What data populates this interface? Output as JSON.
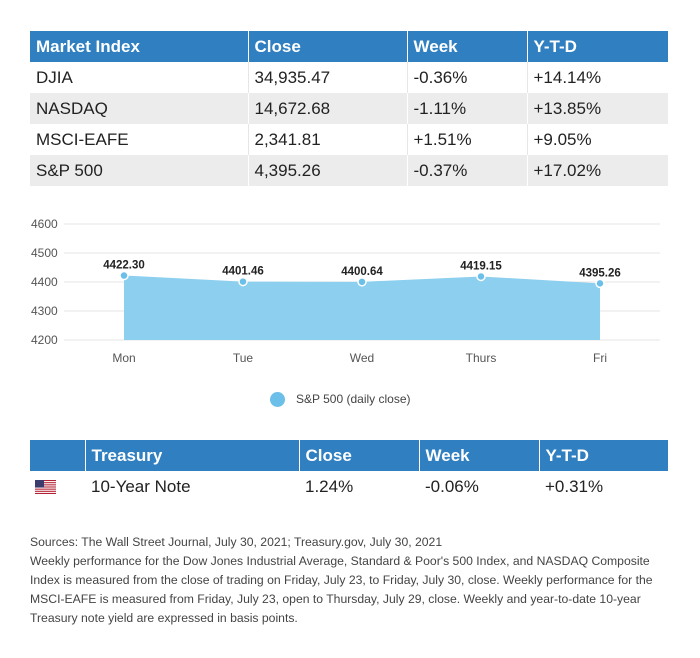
{
  "market_table": {
    "headers": [
      "Market Index",
      "Close",
      "Week",
      "Y-T-D"
    ],
    "rows": [
      [
        "DJIA",
        "34,935.47",
        "-0.36%",
        "+14.14%"
      ],
      [
        "NASDAQ",
        "14,672.68",
        "-1.11%",
        "+13.85%"
      ],
      [
        "MSCI-EAFE",
        "2,341.81",
        "+1.51%",
        "+9.05%"
      ],
      [
        "S&P 500",
        "4,395.26",
        "-0.37%",
        "+17.02%"
      ]
    ]
  },
  "chart_data": {
    "type": "area",
    "categories": [
      "Mon",
      "Tue",
      "Wed",
      "Thurs",
      "Fri"
    ],
    "series": [
      {
        "name": "S&P 500 (daily close)",
        "values": [
          4422.3,
          4401.46,
          4400.64,
          4419.15,
          4395.26
        ]
      }
    ],
    "data_labels": [
      "4422.30",
      "4401.46",
      "4400.64",
      "4419.15",
      "4395.26"
    ],
    "ylim": [
      4200,
      4600
    ],
    "yticks": [
      4200,
      4300,
      4400,
      4500,
      4600
    ],
    "grid": true,
    "legend_position": "bottom",
    "colors": {
      "fill": "#8ccfee",
      "point": "#6bbfe8",
      "grid": "#e6e6e6"
    }
  },
  "treasury_table": {
    "flag_icon": "us-flag-icon",
    "headers": [
      "Treasury",
      "Close",
      "Week",
      "Y-T-D"
    ],
    "rows": [
      [
        "10-Year Note",
        "1.24%",
        "-0.06%",
        "+0.31%"
      ]
    ]
  },
  "notes": {
    "sources": "Sources: The Wall Street Journal, July 30, 2021; Treasury.gov, July 30, 2021",
    "body": "Weekly performance for the Dow Jones Industrial Average, Standard & Poor's 500 Index, and NASDAQ Composite Index is measured from the close of trading on Friday, July 23, to Friday, July 30, close. Weekly performance for the MSCI-EAFE is measured from Friday, July 23, open to Thursday, July 29, close. Weekly and year-to-date 10-year Treasury note yield are expressed in basis points."
  },
  "colors": {
    "header_bg": "#2f7fc1",
    "row_alt_bg": "#ececec"
  }
}
